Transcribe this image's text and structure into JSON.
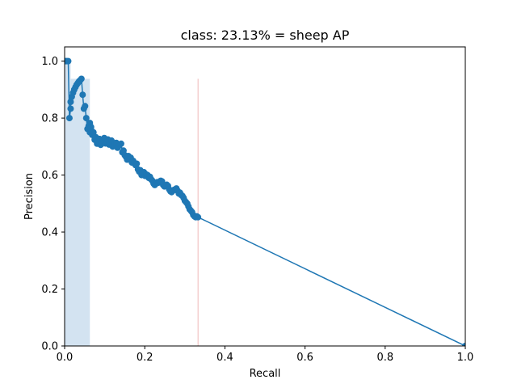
{
  "chart_data": {
    "type": "line",
    "title": "class: 23.13% = sheep AP",
    "xlabel": "Recall",
    "ylabel": "Precision",
    "xlim": [
      0,
      1
    ],
    "ylim": [
      0,
      1.05
    ],
    "xticks": [
      "0.0",
      "0.2",
      "0.4",
      "0.6",
      "0.8",
      "1.0"
    ],
    "yticks": [
      "0.0",
      "0.2",
      "0.4",
      "0.6",
      "0.8",
      "1.0"
    ],
    "grid": false,
    "colors": {
      "line": "#1f77b4",
      "area_fill": "#d3e3f1",
      "area_edge": "#f0b8b8"
    },
    "series": [
      {
        "style": "line-with-markers",
        "x": [
          0,
          0.003,
          0.006,
          0.009,
          0.012,
          0.015,
          0.015,
          0.018,
          0.021,
          0.024,
          0.027,
          0.03,
          0.033,
          0.036,
          0.039,
          0.042,
          0.045,
          0.048,
          0.051,
          0.054,
          0.057,
          0.06,
          0.063,
          0.063,
          0.066,
          0.066,
          0.069,
          0.072,
          0.075,
          0.078,
          0.081,
          0.084,
          0.087,
          0.09,
          0.093,
          0.096,
          0.099,
          0.102,
          0.105,
          0.108,
          0.111,
          0.114,
          0.117,
          0.12,
          0.123,
          0.126,
          0.129,
          0.132,
          0.135,
          0.138,
          0.141,
          0.144,
          0.147,
          0.15,
          0.153,
          0.156,
          0.156,
          0.159,
          0.162,
          0.165,
          0.168,
          0.171,
          0.174,
          0.177,
          0.18,
          0.183,
          0.186,
          0.189,
          0.192,
          0.195,
          0.198,
          0.201,
          0.204,
          0.207,
          0.21,
          0.213,
          0.216,
          0.219,
          0.222,
          0.225,
          0.228,
          0.231,
          0.234,
          0.237,
          0.24,
          0.243,
          0.246,
          0.249,
          0.252,
          0.255,
          0.258,
          0.261,
          0.264,
          0.267,
          0.27,
          0.273,
          0.276,
          0.279,
          0.282,
          0.285,
          0.288,
          0.291,
          0.294,
          0.297,
          0.3,
          0.303,
          0.306,
          0.309,
          0.312,
          0.315,
          0.318,
          0.321,
          0.324,
          0.327,
          0.33,
          0.333,
          1.0
        ],
        "y": [
          1.0,
          1.0,
          1.0,
          1.0,
          0.8,
          0.833,
          0.857,
          0.875,
          0.889,
          0.9,
          0.909,
          0.917,
          0.923,
          0.929,
          0.933,
          0.938,
          0.882,
          0.833,
          0.842,
          0.8,
          0.762,
          0.773,
          0.783,
          0.75,
          0.76,
          0.769,
          0.741,
          0.75,
          0.724,
          0.733,
          0.71,
          0.719,
          0.727,
          0.706,
          0.714,
          0.722,
          0.73,
          0.711,
          0.718,
          0.725,
          0.707,
          0.714,
          0.721,
          0.7,
          0.705,
          0.711,
          0.713,
          0.696,
          0.702,
          0.708,
          0.71,
          0.68,
          0.686,
          0.67,
          0.664,
          0.654,
          0.66,
          0.667,
          0.655,
          0.661,
          0.644,
          0.65,
          0.643,
          0.635,
          0.64,
          0.62,
          0.612,
          0.617,
          0.6,
          0.605,
          0.61,
          0.597,
          0.602,
          0.6,
          0.59,
          0.594,
          0.585,
          0.58,
          0.57,
          0.565,
          0.57,
          0.575,
          0.573,
          0.577,
          0.58,
          0.578,
          0.565,
          0.56,
          0.563,
          0.566,
          0.562,
          0.55,
          0.543,
          0.54,
          0.545,
          0.548,
          0.55,
          0.553,
          0.545,
          0.535,
          0.538,
          0.53,
          0.527,
          0.52,
          0.51,
          0.505,
          0.5,
          0.49,
          0.48,
          0.475,
          0.47,
          0.46,
          0.455,
          0.452,
          0.455,
          0.452,
          0.0
        ]
      }
    ],
    "shaded_area": {
      "x": [
        0,
        0.015,
        0.015,
        0.063,
        0.063,
        0.333
      ],
      "y": [
        1.0,
        1.0,
        0.938,
        0.938,
        0.0,
        0.0
      ]
    }
  }
}
